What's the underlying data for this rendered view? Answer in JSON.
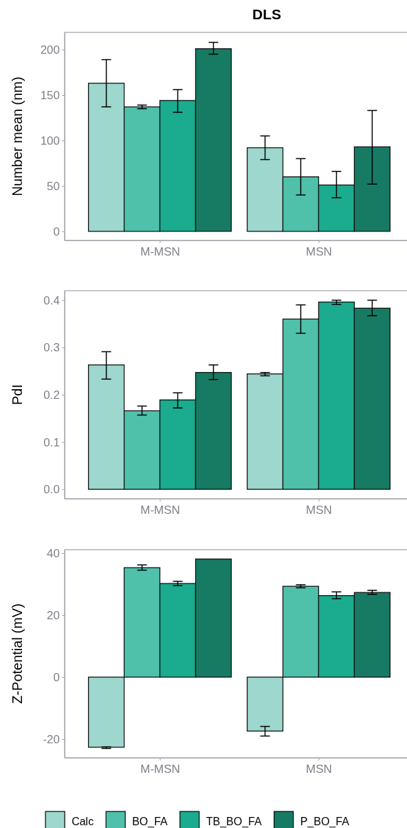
{
  "chart_data": [
    {
      "type": "bar",
      "title": "DLS",
      "ylabel": "Number mean (nm)",
      "categories": [
        "M-MSN",
        "MSN"
      ],
      "ylim": [
        -10,
        219
      ],
      "yticks": [
        0,
        50,
        100,
        150,
        200
      ],
      "grid": false,
      "legend": false,
      "series": [
        {
          "color": "#9dd7cd",
          "values": [
            163,
            92
          ],
          "errors": [
            [
              137,
              189
            ],
            [
              79,
              105
            ]
          ]
        },
        {
          "color": "#4fc1ab",
          "values": [
            137,
            60
          ],
          "errors": [
            [
              135,
              139
            ],
            [
              40,
              80
            ]
          ]
        },
        {
          "color": "#1bab8e",
          "values": [
            144,
            51
          ],
          "errors": [
            [
              131,
              156
            ],
            [
              37,
              66
            ]
          ]
        },
        {
          "color": "#177b64",
          "values": [
            201,
            93
          ],
          "errors": [
            [
              195,
              208
            ],
            [
              52,
              133
            ]
          ]
        }
      ]
    },
    {
      "type": "bar",
      "ylabel": "PdI",
      "categories": [
        "M-MSN",
        "MSN"
      ],
      "ylim": [
        -0.02,
        0.42
      ],
      "yticks": [
        {
          "value": 0,
          "label": "0.0"
        },
        0.1,
        0.2,
        0.3,
        0.4
      ],
      "grid": false,
      "legend": false,
      "series": [
        {
          "color": "#9dd7cd",
          "values": [
            0.263,
            0.244
          ],
          "errors": [
            [
              0.233,
              0.291
            ],
            [
              0.24,
              0.247
            ]
          ]
        },
        {
          "color": "#4fc1ab",
          "values": [
            0.166,
            0.36
          ],
          "errors": [
            [
              0.157,
              0.176
            ],
            [
              0.33,
              0.39
            ]
          ]
        },
        {
          "color": "#1bab8e",
          "values": [
            0.189,
            0.396
          ],
          "errors": [
            [
              0.172,
              0.204
            ],
            [
              0.391,
              0.4
            ]
          ]
        },
        {
          "color": "#177b64",
          "values": [
            0.247,
            0.383
          ],
          "errors": [
            [
              0.232,
              0.263
            ],
            [
              0.367,
              0.4
            ]
          ]
        }
      ]
    },
    {
      "type": "bar",
      "ylabel": "Z-Potential (mV)",
      "categories": [
        "M-MSN",
        "MSN"
      ],
      "ylim": [
        -26,
        41.1
      ],
      "yticks": [
        -20,
        0,
        20,
        40
      ],
      "grid": false,
      "legend": "bottom",
      "series": [
        {
          "name": "Calc",
          "color": "#9dd7cd",
          "values": [
            -22.6,
            -17.4
          ],
          "errors": [
            [
              -23.0,
              -22.5
            ],
            [
              -19.0,
              -15.9
            ]
          ]
        },
        {
          "name": "BO_FA",
          "color": "#4fc1ab",
          "values": [
            35.3,
            29.3
          ],
          "errors": [
            [
              34.5,
              36.2
            ],
            [
              28.8,
              29.8
            ]
          ]
        },
        {
          "name": "TB_BO_FA",
          "color": "#1bab8e",
          "values": [
            30.2,
            26.3
          ],
          "errors": [
            [
              29.5,
              30.9
            ],
            [
              25.3,
              27.5
            ]
          ]
        },
        {
          "name": "P_BO_FA",
          "color": "#177b64",
          "values": [
            38.1,
            27.3
          ],
          "errors": [
            null,
            [
              26.7,
              28.0
            ]
          ]
        }
      ]
    }
  ]
}
